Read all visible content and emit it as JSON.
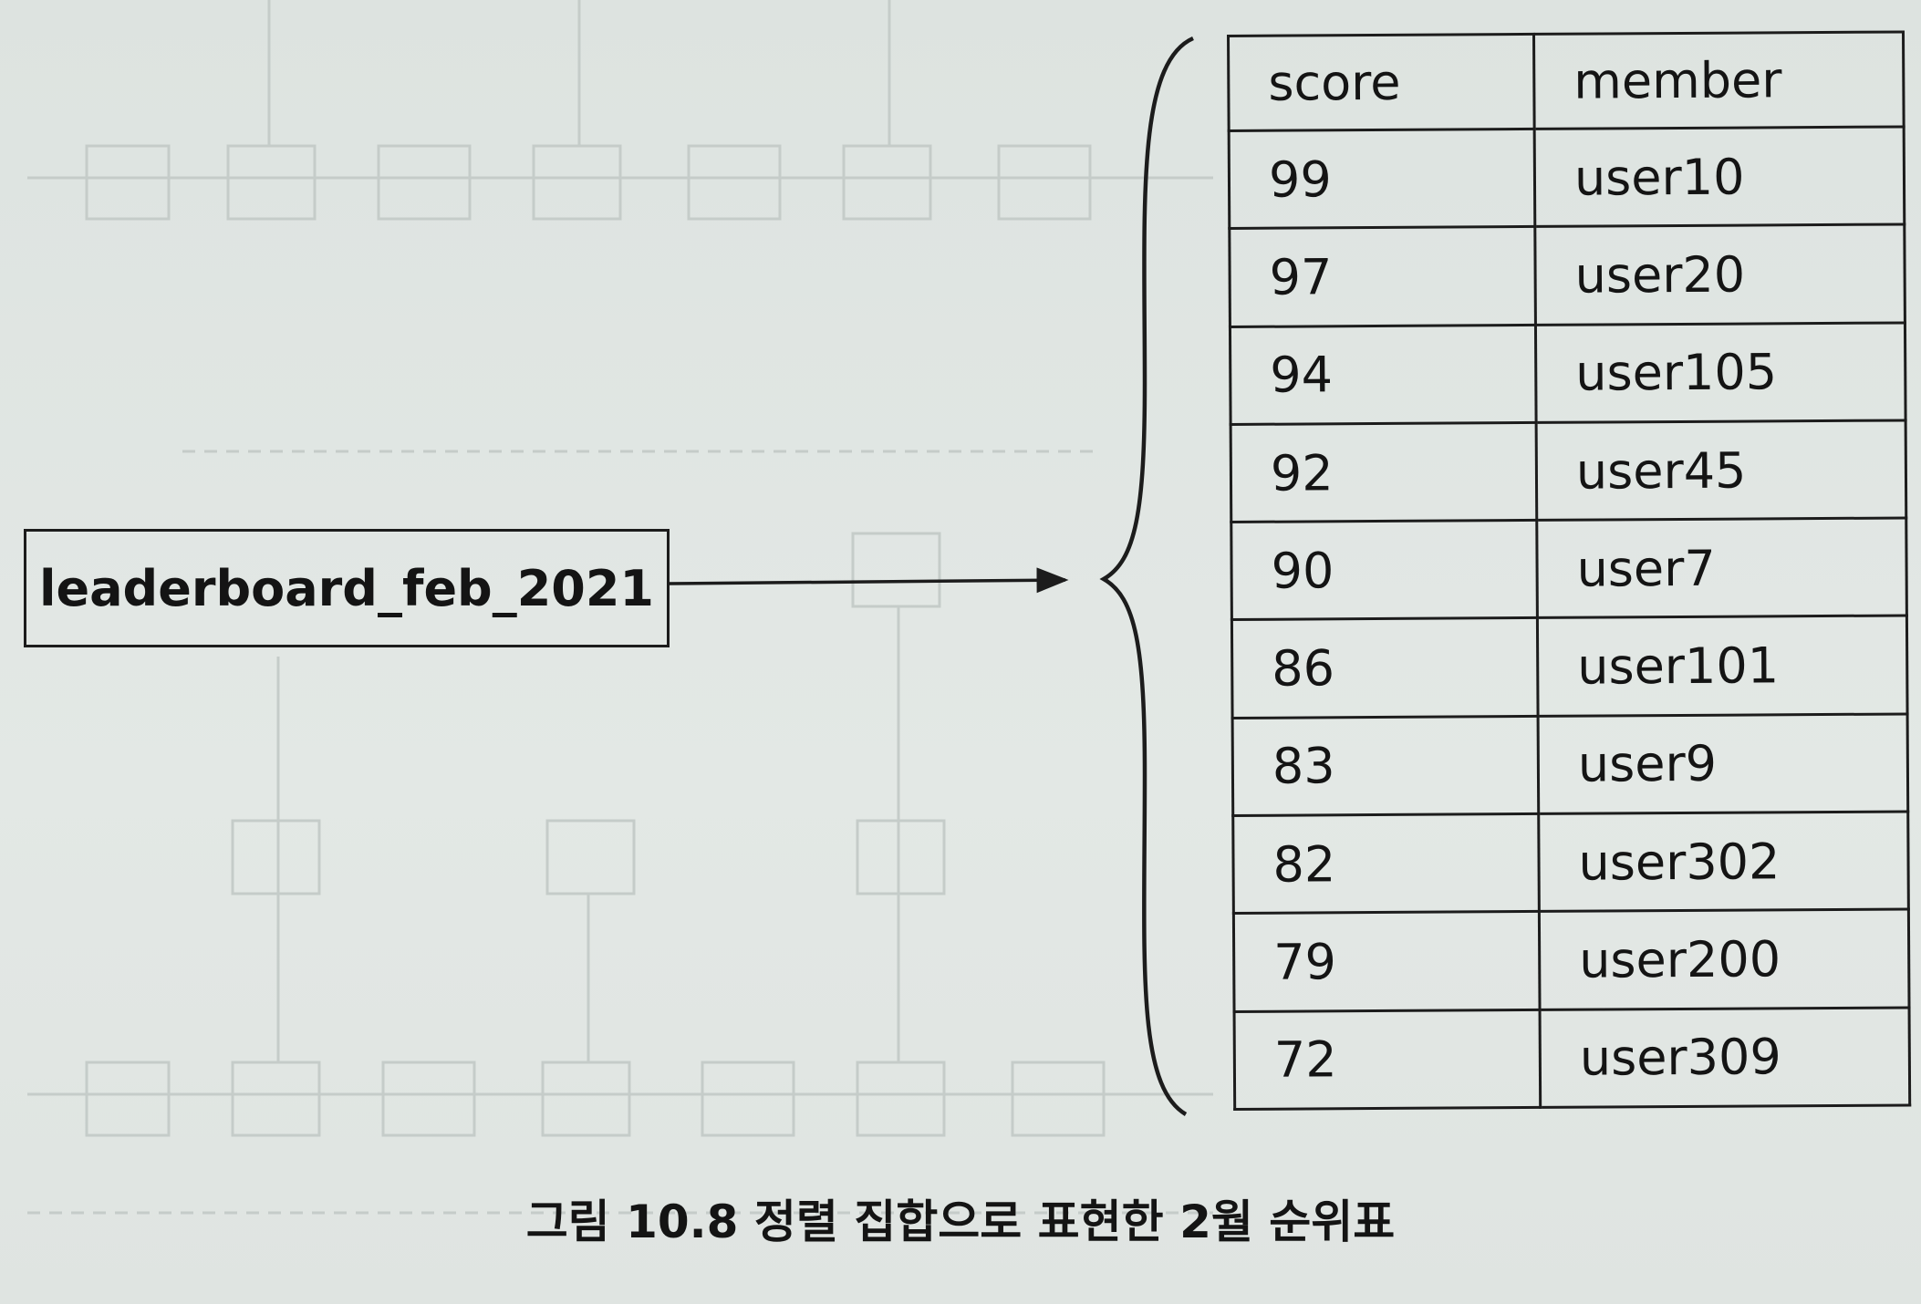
{
  "key_label": "leaderboard_feb_2021",
  "table": {
    "headers": [
      "score",
      "member"
    ],
    "rows": [
      {
        "score": "99",
        "member": "user10"
      },
      {
        "score": "97",
        "member": "user20"
      },
      {
        "score": "94",
        "member": "user105"
      },
      {
        "score": "92",
        "member": "user45"
      },
      {
        "score": "90",
        "member": "user7"
      },
      {
        "score": "86",
        "member": "user101"
      },
      {
        "score": "83",
        "member": "user9"
      },
      {
        "score": "82",
        "member": "user302"
      },
      {
        "score": "79",
        "member": "user200"
      },
      {
        "score": "72",
        "member": "user309"
      }
    ]
  },
  "caption": "그림 10.8 정렬 집합으로 표현한 2월 순위표"
}
